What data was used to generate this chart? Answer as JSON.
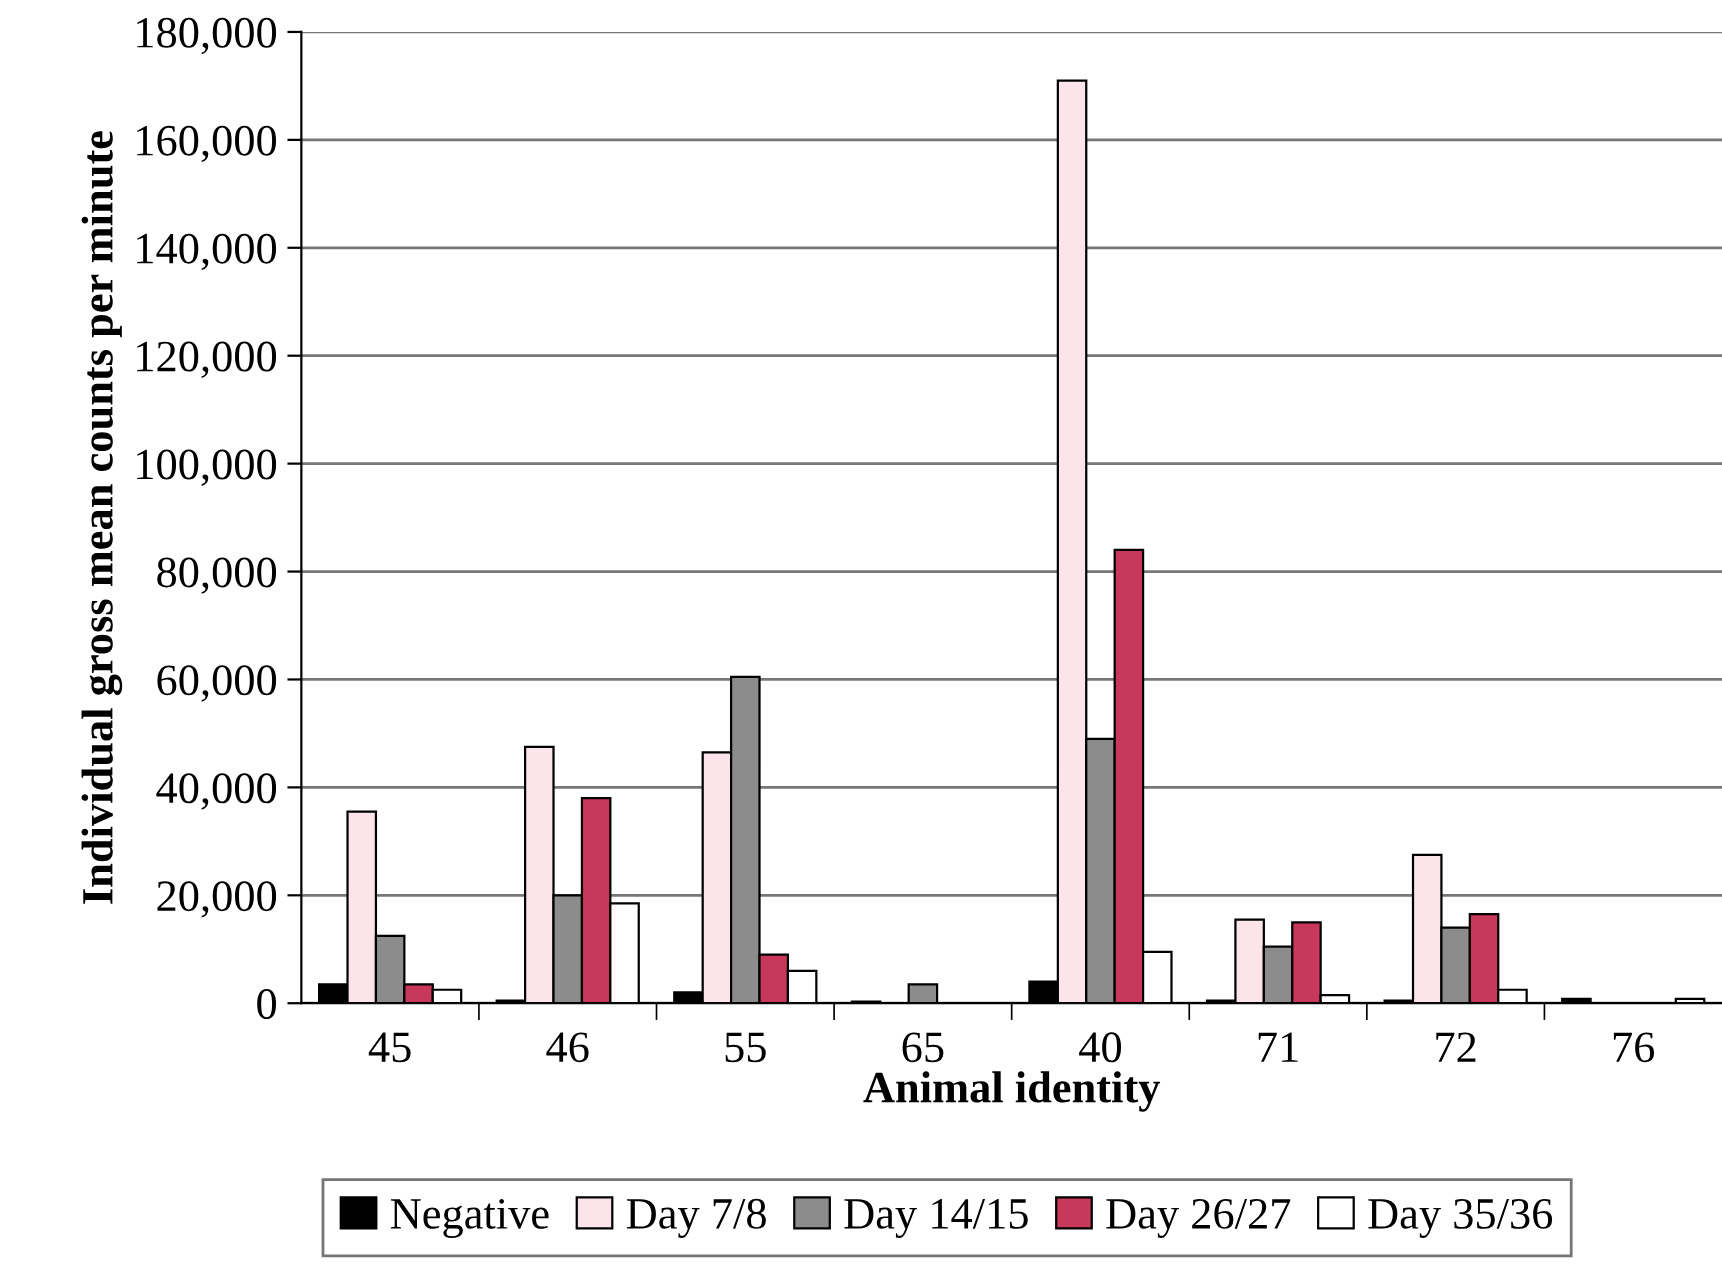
{
  "chart_data": {
    "type": "bar",
    "xlabel": "Animal identity",
    "ylabel": "Individual gross mean counts per minute",
    "categories": [
      "45",
      "46",
      "55",
      "65",
      "40",
      "71",
      "72",
      "76"
    ],
    "series": [
      {
        "name": "Negative",
        "color": "#000000",
        "values": [
          3500,
          500,
          2000,
          300,
          4000,
          500,
          500,
          800
        ]
      },
      {
        "name": "Day 7/8",
        "color": "#fbe4ea",
        "values": [
          35500,
          47500,
          46500,
          null,
          171000,
          15500,
          27500,
          null
        ]
      },
      {
        "name": "Day 14/15",
        "color": "#8c8c8c",
        "values": [
          12500,
          20000,
          60500,
          3500,
          49000,
          10500,
          14000,
          null
        ]
      },
      {
        "name": "Day 26/27",
        "color": "#c8385a",
        "values": [
          3500,
          38000,
          9000,
          null,
          84000,
          15000,
          16500,
          null
        ]
      },
      {
        "name": "Day 35/36",
        "color": "#ffffff",
        "values": [
          2500,
          18500,
          6000,
          null,
          9500,
          1500,
          2500,
          800
        ]
      }
    ],
    "ylim": [
      0,
      180000
    ],
    "yticks": [
      {
        "value": 0,
        "label": "0"
      },
      {
        "value": 20000,
        "label": "20,000"
      },
      {
        "value": 40000,
        "label": "40,000"
      },
      {
        "value": 60000,
        "label": "60,000"
      },
      {
        "value": 80000,
        "label": "80,000"
      },
      {
        "value": 100000,
        "label": "100,000"
      },
      {
        "value": 120000,
        "label": "120,000"
      },
      {
        "value": 140000,
        "label": "140,000"
      },
      {
        "value": 160000,
        "label": "160,000"
      },
      {
        "value": 180000,
        "label": "180,000"
      }
    ],
    "grid": "y",
    "legend": "bottom"
  }
}
